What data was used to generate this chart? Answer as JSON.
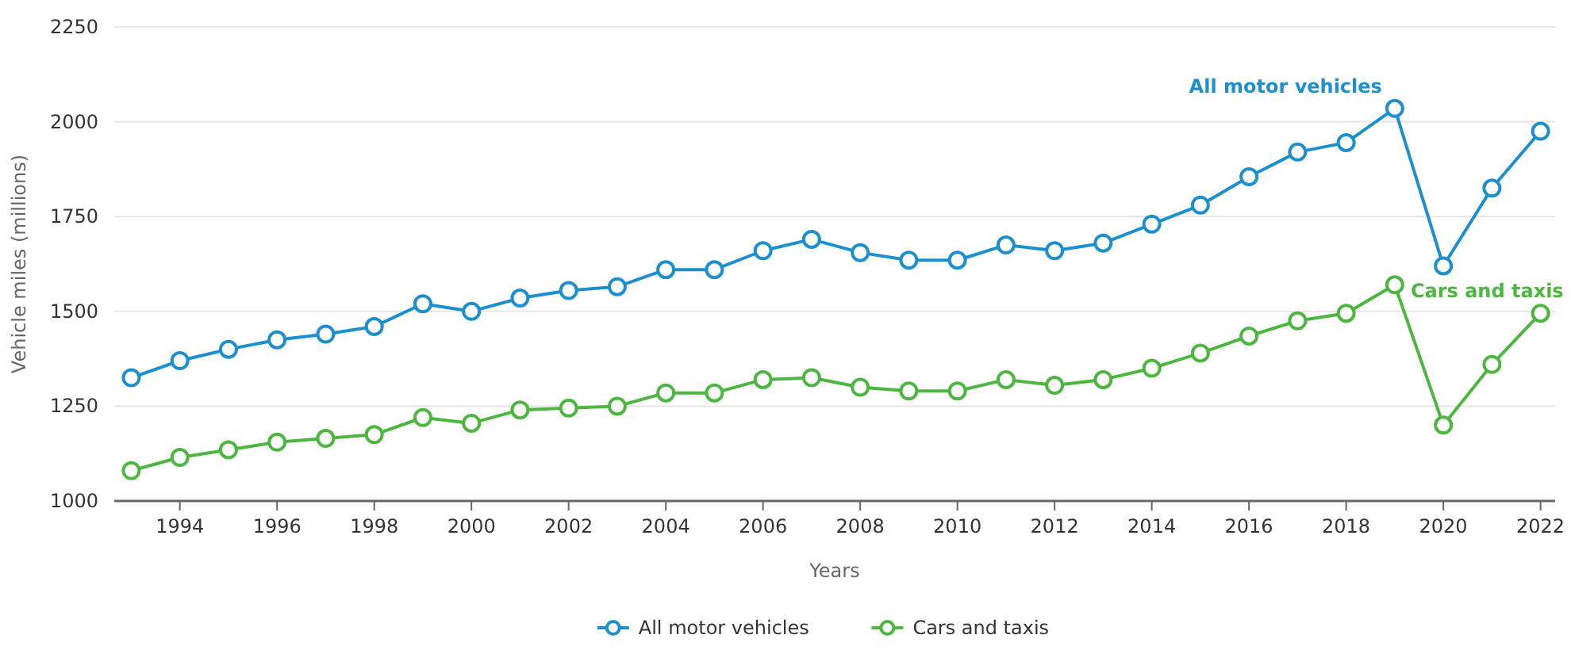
{
  "chart_data": {
    "type": "line",
    "xlabel": "Years",
    "ylabel": "Vehicle miles (millions)",
    "x": [
      1993,
      1994,
      1995,
      1996,
      1997,
      1998,
      1999,
      2000,
      2001,
      2002,
      2003,
      2004,
      2005,
      2006,
      2007,
      2008,
      2009,
      2010,
      2011,
      2012,
      2013,
      2014,
      2015,
      2016,
      2017,
      2018,
      2019,
      2020,
      2021,
      2022
    ],
    "series": [
      {
        "name": "All motor vehicles",
        "color": "#1d8fcf",
        "values": [
          1325,
          1370,
          1400,
          1425,
          1440,
          1460,
          1520,
          1500,
          1535,
          1555,
          1565,
          1610,
          1610,
          1660,
          1690,
          1655,
          1635,
          1635,
          1675,
          1660,
          1680,
          1730,
          1780,
          1855,
          1920,
          1945,
          2035,
          1620,
          1825,
          1975
        ]
      },
      {
        "name": "Cars and taxis",
        "color": "#4cb640",
        "values": [
          1080,
          1115,
          1135,
          1155,
          1165,
          1175,
          1220,
          1205,
          1240,
          1245,
          1250,
          1285,
          1285,
          1320,
          1325,
          1300,
          1290,
          1290,
          1320,
          1305,
          1320,
          1350,
          1390,
          1435,
          1475,
          1495,
          1570,
          1200,
          1360,
          1495
        ]
      }
    ],
    "xlim": [
      1992.65,
      2022.3
    ],
    "xticks": [
      1994,
      1996,
      1998,
      2000,
      2002,
      2004,
      2006,
      2008,
      2010,
      2012,
      2014,
      2016,
      2018,
      2020,
      2022
    ],
    "ylim": [
      1000,
      2250
    ],
    "yticks": [
      1000,
      1250,
      1500,
      1750,
      2000,
      2250
    ],
    "grid": "y",
    "legend": "bottom",
    "marker": "circle",
    "line_style": "solid",
    "annotations": [
      {
        "text": "All motor vehicles",
        "x": 2019,
        "y": 2035
      },
      {
        "text": "Cars and taxis",
        "x": 2019,
        "y": 1570
      }
    ]
  }
}
